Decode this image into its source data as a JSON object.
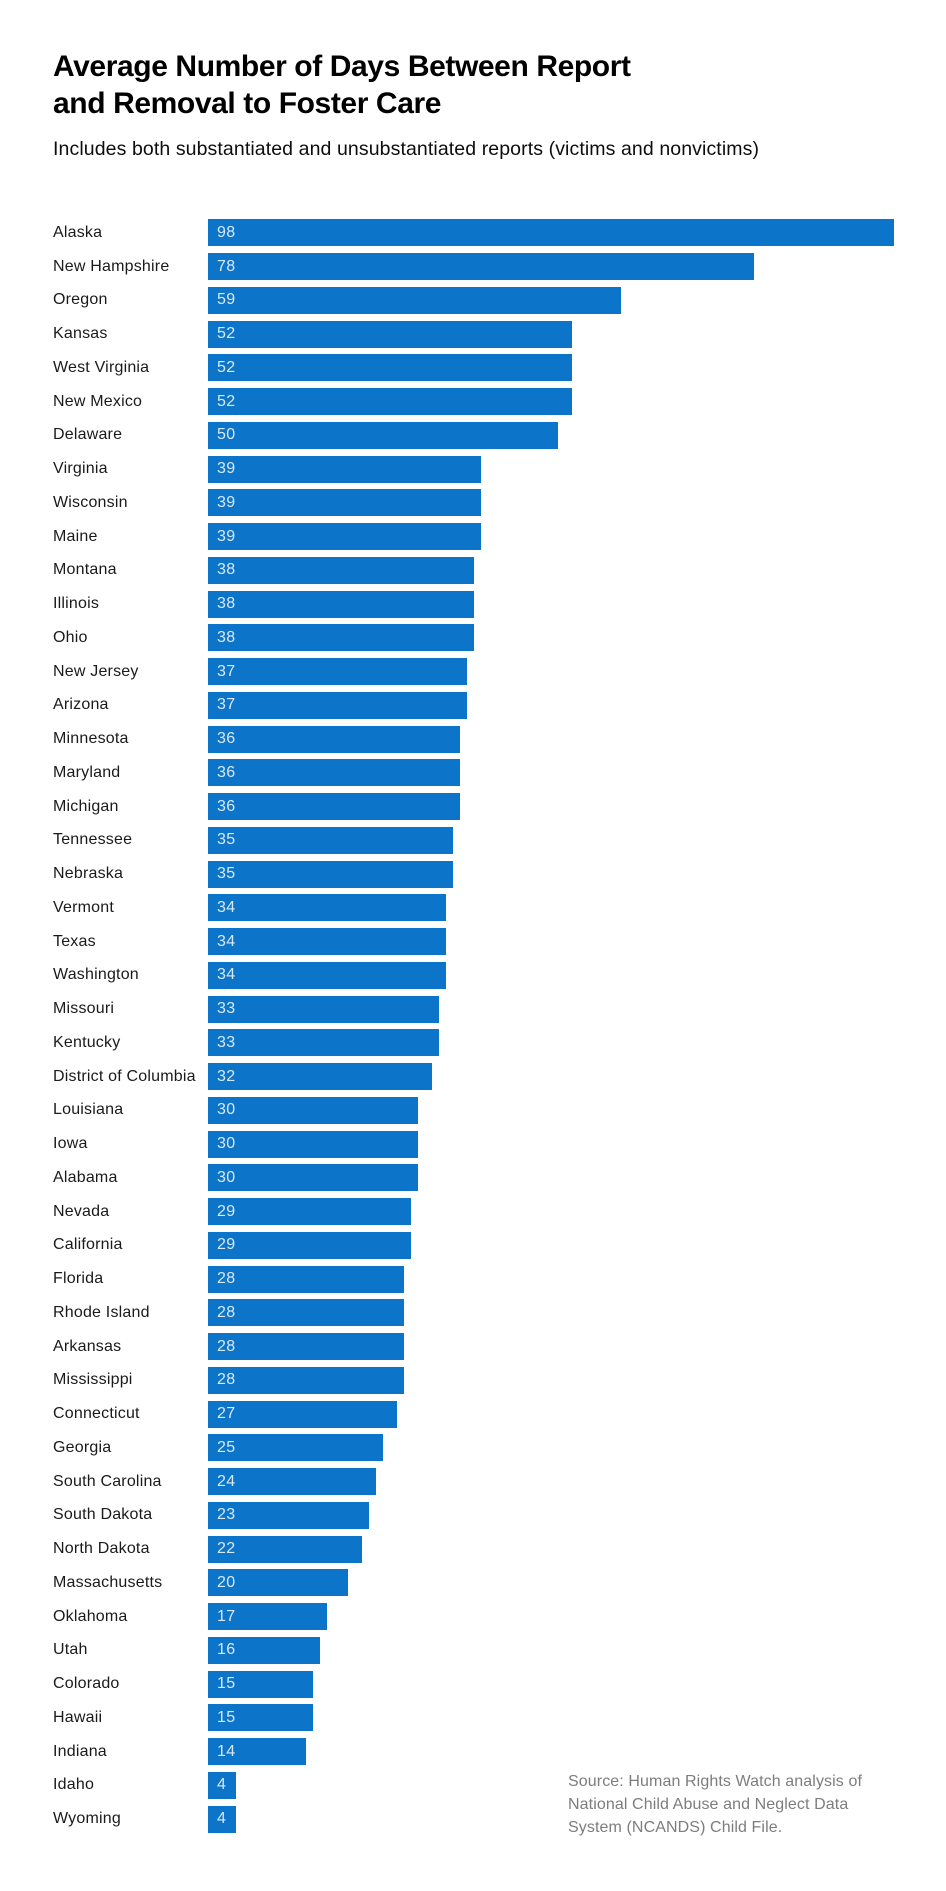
{
  "header": {
    "title_line1": "Average Number of Days Between Report",
    "title_line2": "and Removal to Foster Care",
    "subtitle": "Includes both substantiated and unsubstantiated reports (victims and nonvictims)"
  },
  "colors": {
    "bar": "#0c75c9",
    "bar_value_text": "#d8e9f6",
    "label_text": "#1a1a1a",
    "title_text": "#000000",
    "source_text": "#7d7d7d",
    "background": "#ffffff"
  },
  "chart_data": {
    "type": "bar",
    "orientation": "horizontal",
    "title": "Average Number of Days Between Report and Removal to Foster Care",
    "subtitle": "Includes both substantiated and unsubstantiated reports (victims and nonvictims)",
    "value_label_position": "inside-left",
    "xlim": [
      0,
      100
    ],
    "grid": false,
    "legend": false,
    "bar_color": "#0c75c9",
    "categories": [
      "Alaska",
      "New Hampshire",
      "Oregon",
      "Kansas",
      "West Virginia",
      "New Mexico",
      "Delaware",
      "Virginia",
      "Wisconsin",
      "Maine",
      "Montana",
      "Illinois",
      "Ohio",
      "New Jersey",
      "Arizona",
      "Minnesota",
      "Maryland",
      "Michigan",
      "Tennessee",
      "Nebraska",
      "Vermont",
      "Texas",
      "Washington",
      "Missouri",
      "Kentucky",
      "District of Columbia",
      "Louisiana",
      "Iowa",
      "Alabama",
      "Nevada",
      "California",
      "Florida",
      "Rhode Island",
      "Arkansas",
      "Mississippi",
      "Connecticut",
      "Georgia",
      "South Carolina",
      "South Dakota",
      "North Dakota",
      "Massachusetts",
      "Oklahoma",
      "Utah",
      "Colorado",
      "Hawaii",
      "Indiana",
      "Idaho",
      "Wyoming"
    ],
    "values": [
      98,
      78,
      59,
      52,
      52,
      52,
      50,
      39,
      39,
      39,
      38,
      38,
      38,
      37,
      37,
      36,
      36,
      36,
      35,
      35,
      34,
      34,
      34,
      33,
      33,
      32,
      30,
      30,
      30,
      29,
      29,
      28,
      28,
      28,
      28,
      27,
      25,
      24,
      23,
      22,
      20,
      17,
      16,
      15,
      15,
      14,
      4,
      4
    ]
  },
  "source": {
    "lines": [
      "Source: Human Rights Watch analysis of",
      "National Child Abuse and Neglect Data",
      "System (NCANDS) Child File."
    ]
  }
}
